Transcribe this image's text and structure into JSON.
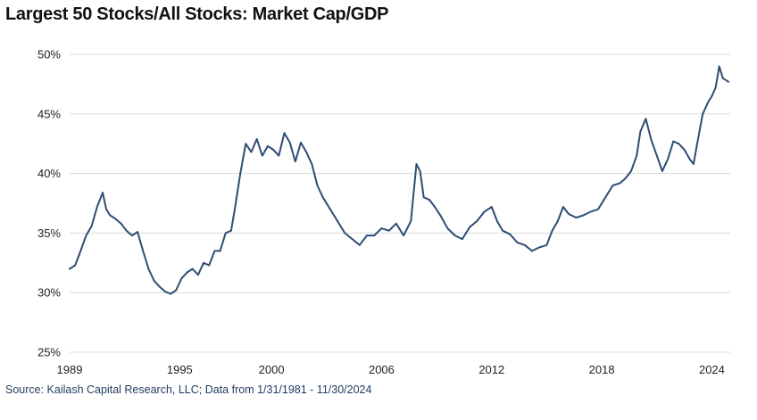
{
  "title": "Largest 50 Stocks/All Stocks: Market Cap/GDP",
  "source": "Source: Kailash Capital Research, LLC; Data from 1/31/1981 - 11/30/2024",
  "chart_data": {
    "type": "line",
    "title": "Largest 50 Stocks/All Stocks: Market Cap/GDP",
    "xlabel": "",
    "ylabel": "",
    "xlim": [
      1989,
      2025
    ],
    "ylim": [
      25,
      50
    ],
    "y_ticks": [
      25,
      30,
      35,
      40,
      45,
      50
    ],
    "y_tick_labels": [
      "25%",
      "30%",
      "35%",
      "40%",
      "45%",
      "50%"
    ],
    "x_ticks": [
      1989,
      1995,
      2000,
      2006,
      2012,
      2018,
      2024
    ],
    "x_tick_labels": [
      "1989",
      "1995",
      "2000",
      "2006",
      "2012",
      "2018",
      "2024"
    ],
    "grid": "horizontal",
    "legend": "none",
    "color": "#2e4d74",
    "series": [
      {
        "x": [
          1989.0,
          1989.3,
          1989.6,
          1989.9,
          1990.2,
          1990.5,
          1990.8,
          1991.0,
          1991.2,
          1991.5,
          1991.8,
          1992.1,
          1992.4,
          1992.7,
          1993.0,
          1993.3,
          1993.6,
          1993.9,
          1994.2,
          1994.5,
          1994.8,
          1995.1,
          1995.4,
          1995.7,
          1996.0,
          1996.3,
          1996.6,
          1996.9,
          1997.2,
          1997.5,
          1997.8,
          1998.0,
          1998.3,
          1998.6,
          1998.9,
          1999.2,
          1999.5,
          1999.8,
          2000.1,
          2000.4,
          2000.7,
          2001.0,
          2001.3,
          2001.6,
          2001.9,
          2002.2,
          2002.5,
          2002.8,
          2003.2,
          2003.6,
          2004.0,
          2004.4,
          2004.8,
          2005.2,
          2005.6,
          2006.0,
          2006.4,
          2006.8,
          2007.2,
          2007.6,
          2007.9,
          2008.1,
          2008.3,
          2008.6,
          2008.9,
          2009.2,
          2009.6,
          2010.0,
          2010.4,
          2010.8,
          2011.2,
          2011.6,
          2012.0,
          2012.3,
          2012.6,
          2013.0,
          2013.4,
          2013.8,
          2014.2,
          2014.6,
          2015.0,
          2015.3,
          2015.6,
          2015.9,
          2016.2,
          2016.6,
          2017.0,
          2017.4,
          2017.8,
          2018.2,
          2018.6,
          2019.0,
          2019.3,
          2019.6,
          2019.9,
          2020.1,
          2020.4,
          2020.7,
          2021.0,
          2021.3,
          2021.6,
          2021.9,
          2022.2,
          2022.5,
          2022.8,
          2023.0,
          2023.2,
          2023.5,
          2023.8,
          2024.0,
          2024.2,
          2024.4,
          2024.6,
          2024.9
        ],
        "y": [
          32.0,
          32.3,
          33.5,
          34.8,
          35.6,
          37.2,
          38.4,
          37.0,
          36.5,
          36.2,
          35.8,
          35.2,
          34.8,
          35.1,
          33.5,
          32.0,
          31.0,
          30.5,
          30.1,
          29.9,
          30.2,
          31.2,
          31.7,
          32.0,
          31.5,
          32.5,
          32.3,
          33.5,
          33.5,
          35.0,
          35.2,
          37.0,
          40.0,
          42.5,
          41.8,
          42.9,
          41.5,
          42.3,
          42.0,
          41.5,
          43.4,
          42.6,
          41.0,
          42.6,
          41.8,
          40.8,
          39.0,
          38.0,
          37.0,
          36.0,
          35.0,
          34.5,
          34.0,
          34.8,
          34.8,
          35.4,
          35.2,
          35.8,
          34.8,
          36.0,
          40.8,
          40.2,
          38.0,
          37.8,
          37.2,
          36.5,
          35.4,
          34.8,
          34.5,
          35.5,
          36.0,
          36.8,
          37.2,
          36.0,
          35.2,
          34.9,
          34.2,
          34.0,
          33.5,
          33.8,
          34.0,
          35.2,
          36.0,
          37.2,
          36.6,
          36.3,
          36.5,
          36.8,
          37.0,
          38.0,
          39.0,
          39.2,
          39.6,
          40.2,
          41.5,
          43.5,
          44.6,
          42.8,
          41.5,
          40.2,
          41.2,
          42.7,
          42.5,
          42.0,
          41.2,
          40.8,
          42.5,
          45.0,
          46.0,
          46.5,
          47.2,
          49.0,
          48.0,
          47.7
        ]
      }
    ]
  }
}
